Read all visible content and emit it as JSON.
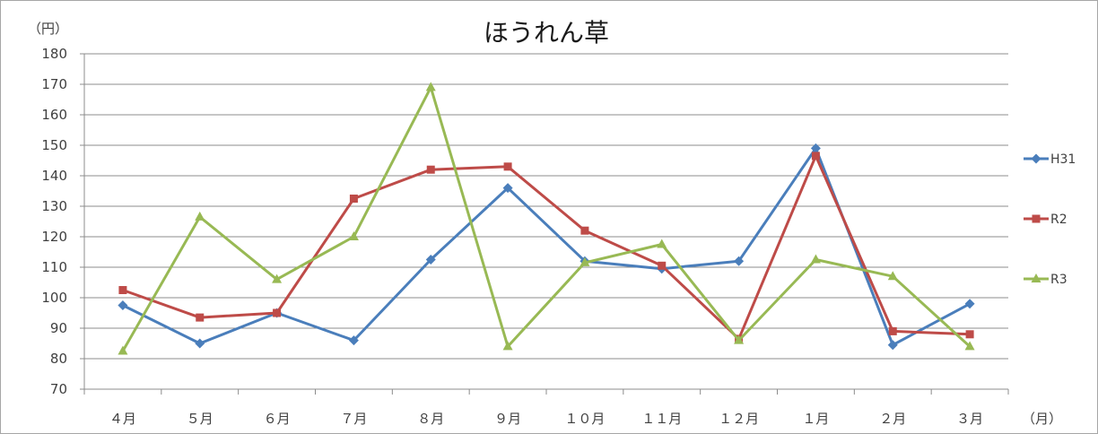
{
  "chart_data": {
    "type": "line",
    "title": "ほうれん草",
    "ylabel": "（円）",
    "xlabel": "（月）",
    "ylim": [
      70,
      180
    ],
    "yticks": [
      "180",
      "170",
      "160",
      "150",
      "140",
      "130",
      "120",
      "110",
      "100",
      "90",
      "80",
      "70"
    ],
    "categories": [
      "４月",
      "５月",
      "６月",
      "７月",
      "８月",
      "９月",
      "１０月",
      "１１月",
      "１２月",
      "１月",
      "２月",
      "３月"
    ],
    "grid": true,
    "legend_position": "right",
    "series": [
      {
        "name": "H31",
        "color": "#4a7ebb",
        "marker": "diamond",
        "values": [
          97.5,
          85,
          95,
          86,
          112.5,
          136,
          112,
          109.5,
          112,
          149,
          84.5,
          98
        ]
      },
      {
        "name": "R2",
        "color": "#be4b48",
        "marker": "square",
        "values": [
          102.5,
          93.5,
          95,
          132.5,
          142,
          143,
          122,
          110.5,
          86.5,
          146.5,
          89,
          88
        ]
      },
      {
        "name": "R3",
        "color": "#98b954",
        "marker": "triangle",
        "values": [
          82.5,
          126.5,
          106,
          120,
          169,
          84,
          111.5,
          117.5,
          86,
          112.5,
          107,
          84
        ]
      }
    ]
  }
}
